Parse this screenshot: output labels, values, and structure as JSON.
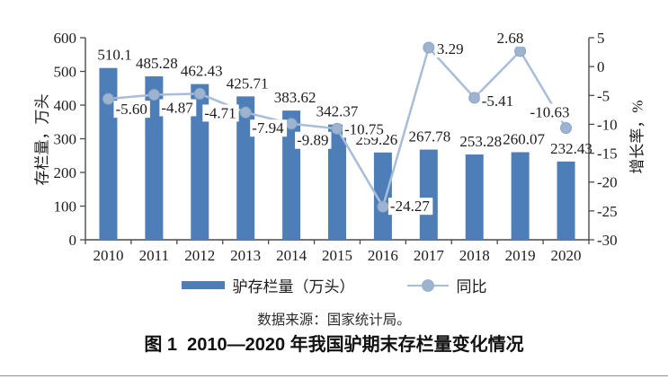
{
  "figure": {
    "source_note": "数据来源：国家统计局。",
    "caption": "图 1  2010—2020 年我国驴期末存栏量变化情况"
  },
  "chart_data": {
    "type": "bar",
    "subtype": "bar-line-combo",
    "categories": [
      "2010",
      "2011",
      "2012",
      "2013",
      "2014",
      "2015",
      "2016",
      "2017",
      "2018",
      "2019",
      "2020"
    ],
    "series": [
      {
        "name": "驴存栏量（万头）",
        "type": "bar",
        "axis": "left",
        "values": [
          510.1,
          485.28,
          462.43,
          425.71,
          383.62,
          342.37,
          259.26,
          267.78,
          253.28,
          260.07,
          232.43
        ],
        "labels": [
          "510.1",
          "485.28",
          "462.43",
          "425.71",
          "383.62",
          "342.37",
          "259.26",
          "267.78",
          "253.28",
          "260.07",
          "232.43"
        ]
      },
      {
        "name": "同比",
        "type": "line",
        "axis": "right",
        "values": [
          -5.6,
          -4.87,
          -4.71,
          -7.94,
          -9.89,
          -10.75,
          -24.27,
          3.29,
          -5.41,
          2.68,
          -10.63
        ],
        "labels": [
          "-5.60",
          "-4.87",
          "-4.71",
          "-7.94",
          "-9.89",
          "-10.75",
          "-24.27",
          "3.29",
          "-5.41",
          "2.68",
          "-10.63"
        ]
      }
    ],
    "axes": {
      "left": {
        "title": "存栏量，万头",
        "min": 0,
        "max": 600,
        "step": 100,
        "ticks": [
          "0",
          "100",
          "200",
          "300",
          "400",
          "500",
          "600"
        ]
      },
      "right": {
        "title": "增长率，%",
        "min": -30,
        "max": 5,
        "step": 5,
        "ticks": [
          "-30",
          "-25",
          "-20",
          "-15",
          "-10",
          "-5",
          "0",
          "5"
        ]
      }
    },
    "legend": {
      "position": "bottom",
      "entries": [
        "驴存栏量（万头）",
        "同比"
      ]
    },
    "grid": false,
    "colors": {
      "bar": "#4e7eb8",
      "line": "#a9bdd7",
      "marker": "#9db3d0",
      "marker_edge": "#8ba4c5",
      "axis": "#4a4a4a",
      "text": "#1c1c1c"
    }
  }
}
